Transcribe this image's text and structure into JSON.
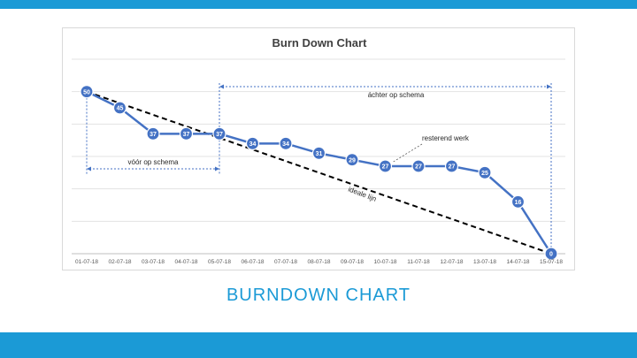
{
  "slide": {
    "title": "BURNDOWN CHART",
    "accent_color": "#1b9ad6"
  },
  "chart_data": {
    "type": "line",
    "title": "Burn Down Chart",
    "xlabel": "",
    "ylabel": "",
    "ylim": [
      0,
      60
    ],
    "grid": true,
    "categories": [
      "01-07-18",
      "02-07-18",
      "03-07-18",
      "04-07-18",
      "05-07-18",
      "06-07-18",
      "07-07-18",
      "08-07-18",
      "09-07-18",
      "10-07-18",
      "11-07-18",
      "12-07-18",
      "13-07-18",
      "14-07-18",
      "15-07-18"
    ],
    "series": [
      {
        "values": [
          50,
          45,
          37,
          37,
          37,
          34,
          34,
          31,
          29,
          27,
          27,
          27,
          25,
          16,
          0
        ],
        "color": "#4472c4"
      }
    ],
    "ideal_line": {
      "from": 50,
      "to": 0,
      "color": "#000000"
    },
    "annotations": {
      "remaining_work": "resterend werk",
      "ideal_line": "ideale lijn",
      "ahead_of_schedule": "vóór op schema",
      "behind_schedule": "áchter  op schema"
    }
  }
}
